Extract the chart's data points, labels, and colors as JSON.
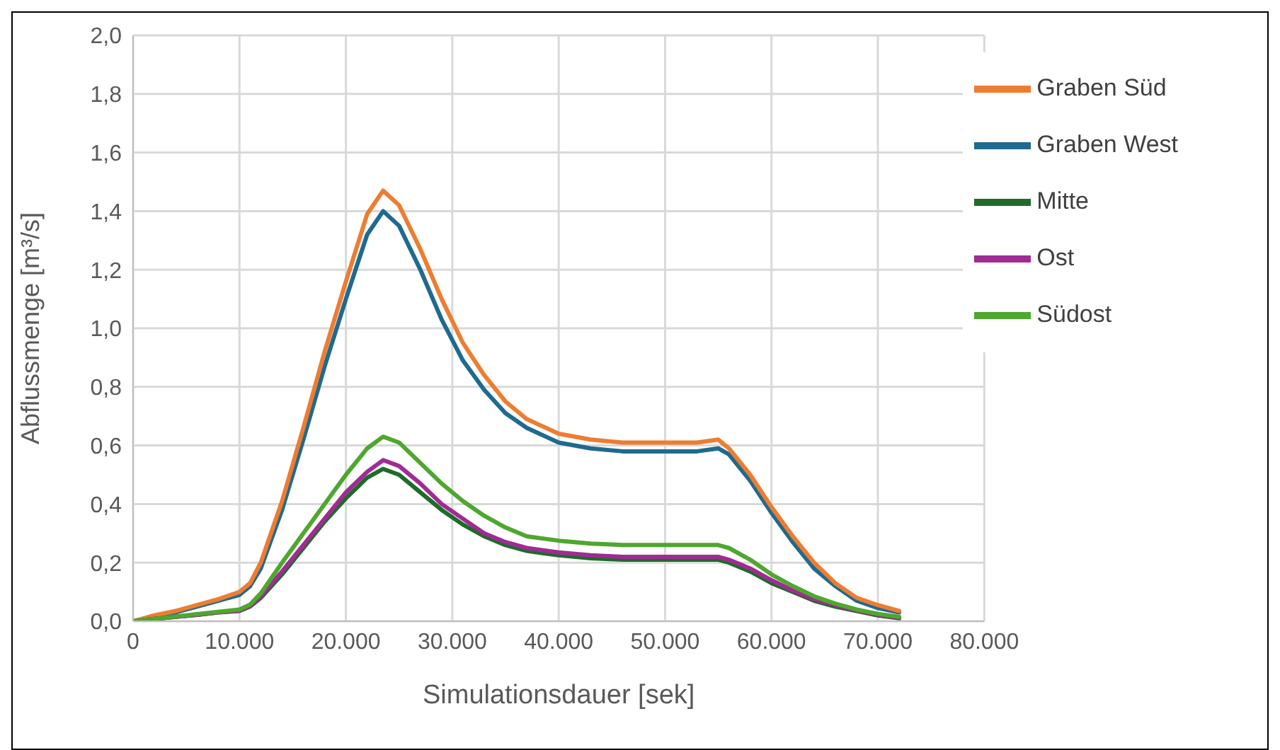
{
  "chart_data": {
    "type": "line",
    "xlabel": "Simulationsdauer [sek]",
    "ylabel": "Abflussmenge [m³/s]",
    "x": [
      0,
      2000,
      4000,
      6000,
      8000,
      10000,
      11000,
      12000,
      14000,
      16000,
      18000,
      20000,
      22000,
      23500,
      25000,
      27000,
      29000,
      31000,
      33000,
      35000,
      37000,
      40000,
      43000,
      46000,
      50000,
      53000,
      55000,
      56000,
      58000,
      60000,
      62000,
      64000,
      66000,
      68000,
      70000,
      72000
    ],
    "series": [
      {
        "name": "Graben West",
        "color": "#1f6a8f",
        "values": [
          0,
          0.015,
          0.03,
          0.05,
          0.07,
          0.09,
          0.12,
          0.18,
          0.38,
          0.62,
          0.87,
          1.1,
          1.32,
          1.4,
          1.35,
          1.2,
          1.03,
          0.89,
          0.79,
          0.71,
          0.66,
          0.61,
          0.59,
          0.58,
          0.58,
          0.58,
          0.59,
          0.57,
          0.48,
          0.37,
          0.27,
          0.18,
          0.12,
          0.07,
          0.045,
          0.03
        ]
      },
      {
        "name": "Graben Süd",
        "color": "#ed7d31",
        "values": [
          0,
          0.02,
          0.035,
          0.055,
          0.075,
          0.1,
          0.13,
          0.2,
          0.41,
          0.66,
          0.92,
          1.16,
          1.39,
          1.47,
          1.42,
          1.27,
          1.1,
          0.95,
          0.84,
          0.75,
          0.69,
          0.64,
          0.62,
          0.61,
          0.61,
          0.61,
          0.62,
          0.59,
          0.5,
          0.39,
          0.29,
          0.2,
          0.13,
          0.08,
          0.055,
          0.035
        ]
      },
      {
        "name": "Mitte",
        "color": "#1e6b2a",
        "values": [
          0,
          0.008,
          0.015,
          0.022,
          0.03,
          0.035,
          0.05,
          0.08,
          0.16,
          0.25,
          0.34,
          0.42,
          0.49,
          0.52,
          0.5,
          0.44,
          0.38,
          0.33,
          0.29,
          0.26,
          0.24,
          0.225,
          0.215,
          0.21,
          0.21,
          0.21,
          0.21,
          0.2,
          0.17,
          0.13,
          0.1,
          0.07,
          0.05,
          0.035,
          0.02,
          0.01
        ]
      },
      {
        "name": "Ost",
        "color": "#a02b93",
        "values": [
          0,
          0.008,
          0.015,
          0.022,
          0.03,
          0.037,
          0.052,
          0.085,
          0.17,
          0.26,
          0.35,
          0.44,
          0.51,
          0.55,
          0.53,
          0.47,
          0.4,
          0.35,
          0.3,
          0.27,
          0.25,
          0.235,
          0.225,
          0.22,
          0.22,
          0.22,
          0.22,
          0.21,
          0.18,
          0.14,
          0.105,
          0.075,
          0.055,
          0.037,
          0.022,
          0.012
        ]
      },
      {
        "name": "Südost",
        "color": "#4ea72e",
        "values": [
          0,
          0.008,
          0.016,
          0.024,
          0.032,
          0.04,
          0.057,
          0.095,
          0.2,
          0.3,
          0.4,
          0.5,
          0.59,
          0.63,
          0.61,
          0.54,
          0.47,
          0.41,
          0.36,
          0.32,
          0.29,
          0.275,
          0.265,
          0.26,
          0.26,
          0.26,
          0.26,
          0.25,
          0.21,
          0.16,
          0.12,
          0.085,
          0.06,
          0.04,
          0.025,
          0.015
        ]
      }
    ],
    "xlim": [
      0,
      80000
    ],
    "xticks": [
      {
        "value": 0,
        "label": "0"
      },
      {
        "value": 10000,
        "label": "10.000"
      },
      {
        "value": 20000,
        "label": "20.000"
      },
      {
        "value": 30000,
        "label": "30.000"
      },
      {
        "value": 40000,
        "label": "40.000"
      },
      {
        "value": 50000,
        "label": "50.000"
      },
      {
        "value": 60000,
        "label": "60.000"
      },
      {
        "value": 70000,
        "label": "70.000"
      },
      {
        "value": 80000,
        "label": "80.000"
      }
    ],
    "ylim": [
      0,
      2
    ],
    "yticks": [
      {
        "value": 0,
        "label": "0,0"
      },
      {
        "value": 0.2,
        "label": "0,2"
      },
      {
        "value": 0.4,
        "label": "0,4"
      },
      {
        "value": 0.6,
        "label": "0,6"
      },
      {
        "value": 0.8,
        "label": "0,8"
      },
      {
        "value": 1,
        "label": "1,0"
      },
      {
        "value": 1.2,
        "label": "1,2"
      },
      {
        "value": 1.4,
        "label": "1,4"
      },
      {
        "value": 1.6,
        "label": "1,6"
      },
      {
        "value": 1.8,
        "label": "1,8"
      },
      {
        "value": 2,
        "label": "2,0"
      }
    ],
    "grid": true,
    "legend": "top right",
    "marker": "none",
    "line_style": "solid"
  }
}
